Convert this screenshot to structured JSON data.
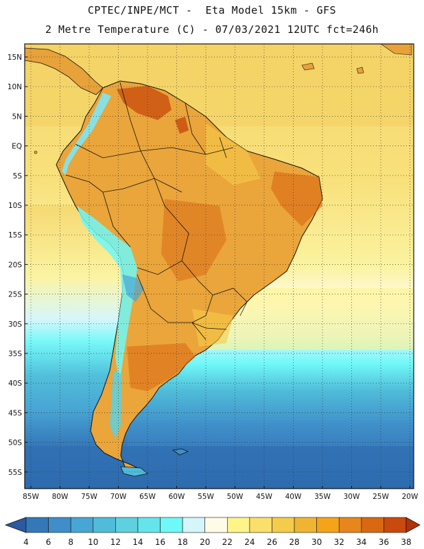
{
  "header": {
    "title_line1": "CPTEC/INPE/MCT -  Eta Model 15km - GFS",
    "title_line2": "2 Metre Temperature (C) - 07/03/2021 12UTC fct=246h"
  },
  "map": {
    "latitude_labels": [
      "15N",
      "10N",
      "5N",
      "EQ",
      "5S",
      "10S",
      "15S",
      "20S",
      "25S",
      "30S",
      "35S",
      "40S",
      "45S",
      "50S",
      "55S"
    ],
    "longitude_labels": [
      "85W",
      "80W",
      "75W",
      "70W",
      "65W",
      "60W",
      "55W",
      "50W",
      "45W",
      "40W",
      "35W",
      "30W",
      "25W",
      "20W"
    ],
    "colors": {
      "ocean_warm": "#f5d870",
      "ocean_mild": "#fbf3a0",
      "land_hot": "#e08e28",
      "land_warm": "#eaa53b",
      "mountain_cold": "#7de7f5",
      "ocean_cold": "#2f6fb3"
    }
  },
  "colorbar": {
    "labels": [
      "4",
      "6",
      "8",
      "10",
      "12",
      "14",
      "16",
      "18",
      "20",
      "22",
      "24",
      "26",
      "28",
      "30",
      "32",
      "34",
      "36",
      "38"
    ],
    "colors": [
      "#2a5aa0",
      "#3478b8",
      "#3f8ec9",
      "#48a6d4",
      "#50bcd9",
      "#5ed0e0",
      "#65e4ec",
      "#6ff8f8",
      "#d4f6fb",
      "#fffbe6",
      "#fef48a",
      "#fadf6a",
      "#f5cb4a",
      "#efb532",
      "#f5a41a",
      "#e8861e",
      "#d86812",
      "#c84a0c",
      "#b23208"
    ]
  }
}
